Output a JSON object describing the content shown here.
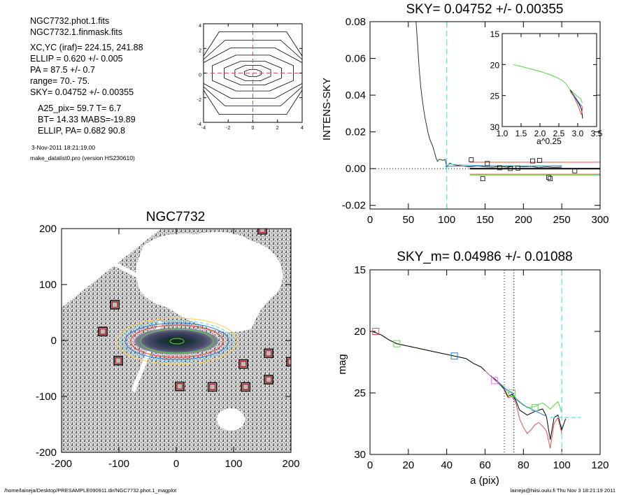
{
  "info": {
    "lines_a": [
      "NGC7732.phot.1.fits",
      "NGC7732.1.finmask.fits"
    ],
    "lines_b": [
      "XC,YC (iraf)=   224.15, 241.88",
      "ELLIP = 0.620 +/- 0.005",
      "PA    =  87.5 +/-   0.7",
      "range=   70.-   75.",
      "SKY= 0.04752 +/- 0.00355"
    ],
    "lines_c": [
      "A25_pix= 59.7   T= 6.7",
      "BT=  14.33   MABS=-19.89",
      "ELLIP, PA= 0.682    90.8"
    ],
    "date": "3-Nov-2011 18:21:19.00",
    "program": "make_datalist0.pro (version HS230610)"
  },
  "footer": {
    "left": "/home/laineja/Desktop/PRESAMPLE090911.dir/NGC7732.phot.1_magplot",
    "right": "laineja@hiisi.oulu.fi  Thu Nov  3 18:21:19 2011"
  },
  "colors": {
    "axis": "#000000",
    "dashed_cyan": "#5fe3f0",
    "red": "#e8504a",
    "green": "#5ed84a",
    "blue": "#2a7be0",
    "magenta": "#e070e0",
    "grey_text": "#444444"
  },
  "chart_data": [
    {
      "id": "contour",
      "type": "contour",
      "xlim": [
        -4,
        4
      ],
      "ylim": [
        -4,
        4
      ],
      "xticks": [
        -4,
        -2,
        0,
        2,
        4
      ],
      "yticks": [
        -4,
        -2,
        0,
        2,
        4
      ],
      "crosshair": "dashed red at x=0, y=0",
      "contours_approx": [
        {
          "a": 0.7,
          "b": 0.3
        },
        {
          "a": 1.5,
          "b": 0.65
        },
        {
          "a": 2.4,
          "b": 1.0
        },
        {
          "a": 3.4,
          "b": 1.5
        },
        {
          "a": 4.5,
          "b": 2.1
        },
        {
          "a": 5.6,
          "b": 2.75
        },
        {
          "a": 6.8,
          "b": 3.45
        }
      ]
    },
    {
      "id": "sky",
      "type": "line",
      "title": "SKY= 0.04752 +/- 0.00355",
      "xlabel": "",
      "ylabel": "INTENS-SKY",
      "xlim": [
        0,
        300
      ],
      "ylim": [
        -0.022,
        0.08
      ],
      "xticks": [
        0,
        50,
        100,
        150,
        200,
        250,
        300
      ],
      "yticks": [
        -0.02,
        0.0,
        0.02,
        0.04,
        0.06,
        0.08
      ],
      "ytick_labels": [
        "-0.02",
        "0.00",
        "0.02",
        "0.04",
        "0.06",
        "0.08"
      ],
      "zero_line": "dotted",
      "vline_dashed_cyan_x": 100,
      "profile": {
        "x": [
          60,
          62,
          64,
          66,
          68,
          70,
          72,
          74,
          76,
          78,
          80,
          82,
          84,
          86,
          88,
          90,
          92,
          95,
          98,
          100,
          104,
          110,
          120,
          130,
          140,
          150,
          160,
          170,
          180,
          190,
          200,
          210,
          220,
          230,
          240,
          250
        ],
        "y": [
          0.085,
          0.068,
          0.055,
          0.045,
          0.038,
          0.032,
          0.027,
          0.023,
          0.019,
          0.016,
          0.014,
          0.012,
          0.009,
          0.006,
          0.004,
          0.005,
          0.005,
          0.0045,
          0.005,
          0.001,
          0.003,
          0.002,
          0.0015,
          0.001,
          0.0015,
          0.001,
          0.0008,
          0.0012,
          0.0008,
          0.0015,
          0.001,
          0.0012,
          0.0005,
          0.0009,
          0.0006,
          0.0008
        ]
      },
      "cyan_profile": {
        "x": [
          98,
          105,
          115,
          125,
          135,
          145,
          160,
          180,
          200,
          220,
          240,
          250
        ],
        "y": [
          0.0015,
          0.0025,
          0.0022,
          0.002,
          0.0018,
          0.0017,
          0.0016,
          0.0016,
          0.0015,
          0.0016,
          0.0015,
          0.0016
        ]
      },
      "sky_squares": {
        "x": [
          132,
          147,
          153,
          169,
          183,
          193,
          212,
          221,
          233,
          235,
          267
        ],
        "y": [
          0.0048,
          -0.0055,
          0.0028,
          0.0005,
          0.0001,
          0.0003,
          0.0042,
          0.0045,
          -0.0048,
          -0.0055,
          -0.0012
        ]
      },
      "hlines": [
        {
          "color": "black",
          "y": 0.0,
          "x": [
            130,
            300
          ],
          "width": 2
        },
        {
          "color": "red",
          "y": 0.0035,
          "x": [
            130,
            300
          ]
        },
        {
          "color": "red",
          "y": -0.003,
          "x": [
            130,
            300
          ]
        },
        {
          "color": "green",
          "y": -0.0035,
          "x": [
            130,
            300
          ]
        }
      ],
      "inset": {
        "type": "line",
        "xlabel": "a^0.25",
        "xlim": [
          1.0,
          3.5
        ],
        "ylim": [
          30,
          15
        ],
        "xticks": [
          1.0,
          1.5,
          2.0,
          2.5,
          3.0,
          3.5
        ],
        "xtick_labels": [
          "1.0",
          "1.5",
          "2.0",
          "2.5",
          "3.0",
          "3.5"
        ],
        "yticks": [
          15,
          20,
          25,
          30
        ],
        "series": [
          {
            "color": "green",
            "x": [
              1.3,
              1.5,
              1.75,
              2.0,
              2.25,
              2.45,
              2.6,
              2.7,
              2.8,
              2.9,
              3.0,
              3.08,
              3.12
            ],
            "y": [
              20.0,
              20.3,
              20.7,
              21.1,
              21.6,
              22.1,
              22.6,
              23.2,
              24.1,
              24.6,
              25.2,
              25.5,
              26.2
            ]
          },
          {
            "color": "black",
            "x": [
              2.8,
              2.9,
              3.0,
              3.05,
              3.1,
              3.13
            ],
            "y": [
              24.1,
              25.0,
              26.0,
              26.5,
              27.2,
              28.7
            ]
          },
          {
            "color": "red",
            "x": [
              2.8,
              2.9,
              3.0,
              3.05,
              3.1,
              3.13
            ],
            "y": [
              24.3,
              25.2,
              26.5,
              27.3,
              28.1,
              26.8
            ]
          },
          {
            "color": "blue",
            "x": [
              2.85,
              2.95,
              3.05,
              3.12
            ],
            "y": [
              24.5,
              25.4,
              26.3,
              26.8
            ]
          }
        ]
      }
    },
    {
      "id": "image",
      "type": "image",
      "title": "NGC7732",
      "xlim": [
        -200,
        200
      ],
      "ylim": [
        -200,
        200
      ],
      "xticks": [
        -200,
        -100,
        0,
        100,
        200
      ],
      "yticks": [
        -200,
        -100,
        0,
        100,
        200
      ],
      "masked_regions": [
        {
          "x": -128,
          "y": 16
        },
        {
          "x": -107,
          "y": 64
        },
        {
          "x": -101,
          "y": -36
        },
        {
          "x": 6,
          "y": -82
        },
        {
          "x": 63,
          "y": -83
        },
        {
          "x": 117,
          "y": -42
        },
        {
          "x": 121,
          "y": -83
        },
        {
          "x": 150,
          "y": 198
        },
        {
          "x": 161,
          "y": -23
        },
        {
          "x": 161,
          "y": -70
        },
        {
          "x": 200,
          "y": -38
        }
      ],
      "ellipse_center": [
        4,
        0
      ],
      "ellipse_axes": [
        85,
        32
      ]
    },
    {
      "id": "mag",
      "type": "line",
      "title": "SKY_m=  0.04986 +/- 0.01088",
      "xlabel": "a (pix)",
      "ylabel": "mag",
      "xlim": [
        0,
        120
      ],
      "ylim": [
        30,
        15
      ],
      "xticks": [
        0,
        20,
        40,
        60,
        80,
        100,
        120
      ],
      "yticks": [
        15,
        20,
        25,
        30
      ],
      "vlines_dotted_x": [
        70,
        75
      ],
      "vline_dashed_cyan_x": 100,
      "series": [
        {
          "color": "green",
          "name": "",
          "x": [
            1,
            3,
            6,
            10,
            14,
            20,
            26,
            32,
            38,
            44,
            50,
            54,
            58,
            62,
            66,
            70,
            72,
            74,
            76,
            78,
            82,
            86,
            90,
            94,
            98,
            100
          ],
          "y": [
            20.0,
            20.1,
            20.3,
            20.7,
            21.0,
            21.2,
            21.4,
            21.6,
            21.8,
            22.0,
            22.2,
            22.6,
            22.9,
            23.5,
            24.0,
            24.5,
            25.0,
            24.9,
            25.4,
            25.7,
            26.2,
            26.1,
            25.8,
            26.3,
            25.7,
            26.6
          ]
        },
        {
          "color": "black",
          "name": "",
          "x": [
            1,
            3,
            6,
            10,
            14,
            20,
            26,
            32,
            38,
            44,
            50,
            54,
            58,
            62,
            66,
            70,
            72,
            74,
            76,
            78,
            82,
            86,
            90,
            92,
            94,
            96,
            98,
            100,
            102
          ],
          "y": [
            20.0,
            20.1,
            20.3,
            20.7,
            21.0,
            21.2,
            21.4,
            21.6,
            21.8,
            22.0,
            22.2,
            22.6,
            22.9,
            23.5,
            24.0,
            24.7,
            25.3,
            25.1,
            25.6,
            26.4,
            26.8,
            26.5,
            26.3,
            26.9,
            28.8,
            27.0,
            26.8,
            28.0,
            27.1
          ]
        },
        {
          "color": "red",
          "name": "",
          "x": [
            70,
            72,
            74,
            76,
            78,
            80,
            82,
            84,
            86,
            88,
            90,
            92,
            94,
            96,
            98,
            100
          ],
          "y": [
            24.8,
            25.4,
            25.3,
            25.8,
            27.1,
            27.8,
            28.3,
            28.0,
            27.6,
            27.4,
            27.7,
            28.1,
            29.5,
            27.5,
            27.0,
            28.3
          ]
        },
        {
          "color": "blue",
          "name": "",
          "x": [
            66,
            70,
            74,
            76,
            80,
            84,
            88,
            92
          ],
          "y": [
            24.0,
            24.6,
            25.0,
            25.5,
            26.0,
            26.3,
            26.6,
            26.9
          ]
        },
        {
          "color": "magenta",
          "name": "",
          "x": [
            60,
            64,
            68
          ],
          "y": [
            23.2,
            23.8,
            24.4
          ]
        }
      ],
      "cyan_dashed_segment": {
        "x": [
          94,
          110
        ],
        "y": [
          27.0,
          27.0
        ]
      },
      "markers": [
        {
          "color": "red",
          "x": 3,
          "y": 20.0
        },
        {
          "color": "green",
          "x": 14,
          "y": 21.0
        },
        {
          "color": "blue",
          "x": 44,
          "y": 22.0
        },
        {
          "color": "magenta",
          "x": 65,
          "y": 24.0
        },
        {
          "color": "green",
          "x": 74,
          "y": 25.0
        },
        {
          "color": "green",
          "x": 86,
          "y": 26.2
        }
      ]
    }
  ]
}
